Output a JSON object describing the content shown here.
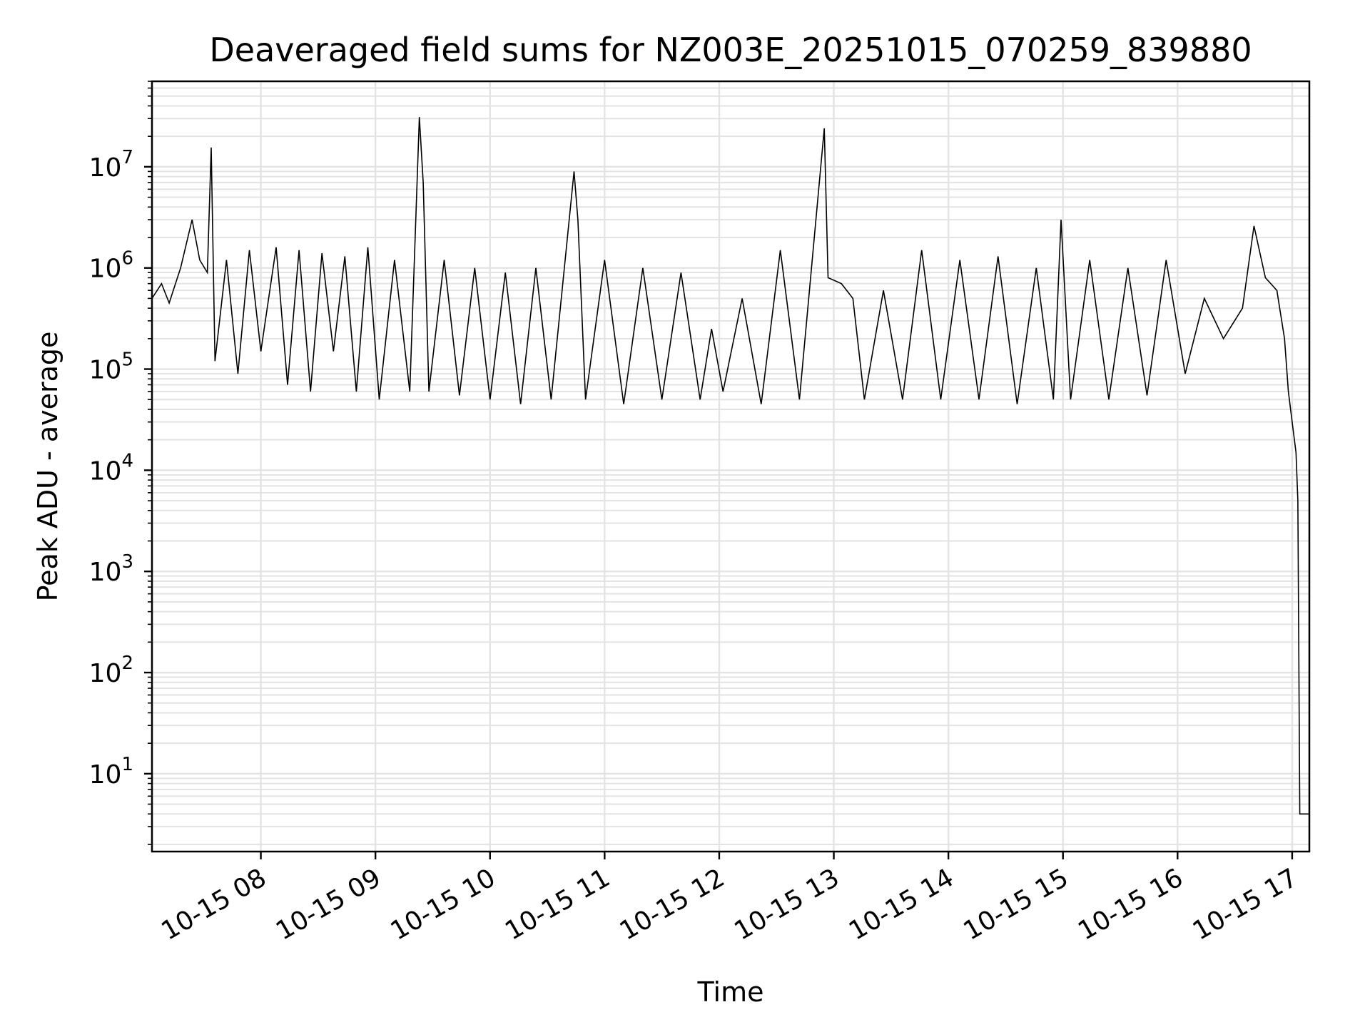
{
  "chart_data": {
    "type": "line",
    "title": "Deaveraged field sums for NZ003E_20251015_070259_839880",
    "xlabel": "Time",
    "ylabel": "Peak ADU - average",
    "yscale": "log",
    "ylim": [
      1.7,
      70000000
    ],
    "xlim": [
      "2025-10-15 07:03",
      "2025-10-15 17:09"
    ],
    "grid": true,
    "x_ticks": [
      "10-15 08",
      "10-15 09",
      "10-15 10",
      "10-15 11",
      "10-15 12",
      "10-15 13",
      "10-15 14",
      "10-15 15",
      "10-15 16",
      "10-15 17"
    ],
    "y_ticks": [
      {
        "base": "10",
        "exp": "1"
      },
      {
        "base": "10",
        "exp": "2"
      },
      {
        "base": "10",
        "exp": "3"
      },
      {
        "base": "10",
        "exp": "4"
      },
      {
        "base": "10",
        "exp": "5"
      },
      {
        "base": "10",
        "exp": "6"
      },
      {
        "base": "10",
        "exp": "7"
      }
    ],
    "series": [
      {
        "color": "#000000",
        "points": [
          [
            "2025-10-15 07:03",
            500000
          ],
          [
            "2025-10-15 07:08",
            700000
          ],
          [
            "2025-10-15 07:12",
            450000
          ],
          [
            "2025-10-15 07:18",
            1000000
          ],
          [
            "2025-10-15 07:24",
            3000000
          ],
          [
            "2025-10-15 07:28",
            1200000
          ],
          [
            "2025-10-15 07:32",
            900000
          ],
          [
            "2025-10-15 07:34",
            15500000
          ],
          [
            "2025-10-15 07:36",
            120000
          ],
          [
            "2025-10-15 07:42",
            1200000
          ],
          [
            "2025-10-15 07:48",
            90000
          ],
          [
            "2025-10-15 07:54",
            1500000
          ],
          [
            "2025-10-15 08:00",
            150000
          ],
          [
            "2025-10-15 08:08",
            1600000
          ],
          [
            "2025-10-15 08:14",
            70000
          ],
          [
            "2025-10-15 08:20",
            1500000
          ],
          [
            "2025-10-15 08:26",
            60000
          ],
          [
            "2025-10-15 08:32",
            1400000
          ],
          [
            "2025-10-15 08:38",
            150000
          ],
          [
            "2025-10-15 08:44",
            1300000
          ],
          [
            "2025-10-15 08:50",
            60000
          ],
          [
            "2025-10-15 08:56",
            1600000
          ],
          [
            "2025-10-15 09:02",
            50000
          ],
          [
            "2025-10-15 09:10",
            1200000
          ],
          [
            "2025-10-15 09:18",
            60000
          ],
          [
            "2025-10-15 09:23",
            31000000
          ],
          [
            "2025-10-15 09:25",
            7000000
          ],
          [
            "2025-10-15 09:28",
            60000
          ],
          [
            "2025-10-15 09:36",
            1200000
          ],
          [
            "2025-10-15 09:44",
            55000
          ],
          [
            "2025-10-15 09:52",
            1000000
          ],
          [
            "2025-10-15 10:00",
            50000
          ],
          [
            "2025-10-15 10:08",
            900000
          ],
          [
            "2025-10-15 10:16",
            45000
          ],
          [
            "2025-10-15 10:24",
            1000000
          ],
          [
            "2025-10-15 10:32",
            50000
          ],
          [
            "2025-10-15 10:44",
            9000000
          ],
          [
            "2025-10-15 10:46",
            3000000
          ],
          [
            "2025-10-15 10:50",
            50000
          ],
          [
            "2025-10-15 11:00",
            1200000
          ],
          [
            "2025-10-15 11:10",
            45000
          ],
          [
            "2025-10-15 11:20",
            1000000
          ],
          [
            "2025-10-15 11:30",
            50000
          ],
          [
            "2025-10-15 11:40",
            900000
          ],
          [
            "2025-10-15 11:50",
            50000
          ],
          [
            "2025-10-15 11:56",
            250000
          ],
          [
            "2025-10-15 12:02",
            60000
          ],
          [
            "2025-10-15 12:12",
            500000
          ],
          [
            "2025-10-15 12:22",
            45000
          ],
          [
            "2025-10-15 12:32",
            1500000
          ],
          [
            "2025-10-15 12:42",
            50000
          ],
          [
            "2025-10-15 12:55",
            24000000
          ],
          [
            "2025-10-15 12:57",
            800000
          ],
          [
            "2025-10-15 13:04",
            700000
          ],
          [
            "2025-10-15 13:10",
            500000
          ],
          [
            "2025-10-15 13:16",
            50000
          ],
          [
            "2025-10-15 13:26",
            600000
          ],
          [
            "2025-10-15 13:36",
            50000
          ],
          [
            "2025-10-15 13:46",
            1500000
          ],
          [
            "2025-10-15 13:56",
            50000
          ],
          [
            "2025-10-15 14:06",
            1200000
          ],
          [
            "2025-10-15 14:16",
            50000
          ],
          [
            "2025-10-15 14:26",
            1300000
          ],
          [
            "2025-10-15 14:36",
            45000
          ],
          [
            "2025-10-15 14:46",
            1000000
          ],
          [
            "2025-10-15 14:55",
            50000
          ],
          [
            "2025-10-15 14:59",
            3000000
          ],
          [
            "2025-10-15 15:04",
            50000
          ],
          [
            "2025-10-15 15:14",
            1200000
          ],
          [
            "2025-10-15 15:24",
            50000
          ],
          [
            "2025-10-15 15:34",
            1000000
          ],
          [
            "2025-10-15 15:44",
            55000
          ],
          [
            "2025-10-15 15:54",
            1200000
          ],
          [
            "2025-10-15 16:04",
            90000
          ],
          [
            "2025-10-15 16:14",
            500000
          ],
          [
            "2025-10-15 16:24",
            200000
          ],
          [
            "2025-10-15 16:34",
            400000
          ],
          [
            "2025-10-15 16:40",
            2600000
          ],
          [
            "2025-10-15 16:46",
            800000
          ],
          [
            "2025-10-15 16:52",
            600000
          ],
          [
            "2025-10-15 16:56",
            200000
          ],
          [
            "2025-10-15 16:58",
            60000
          ],
          [
            "2025-10-15 17:00",
            30000
          ],
          [
            "2025-10-15 17:02",
            15000
          ],
          [
            "2025-10-15 17:03",
            5000
          ],
          [
            "2025-10-15 17:04",
            4
          ],
          [
            "2025-10-15 17:09",
            4
          ]
        ]
      }
    ]
  }
}
